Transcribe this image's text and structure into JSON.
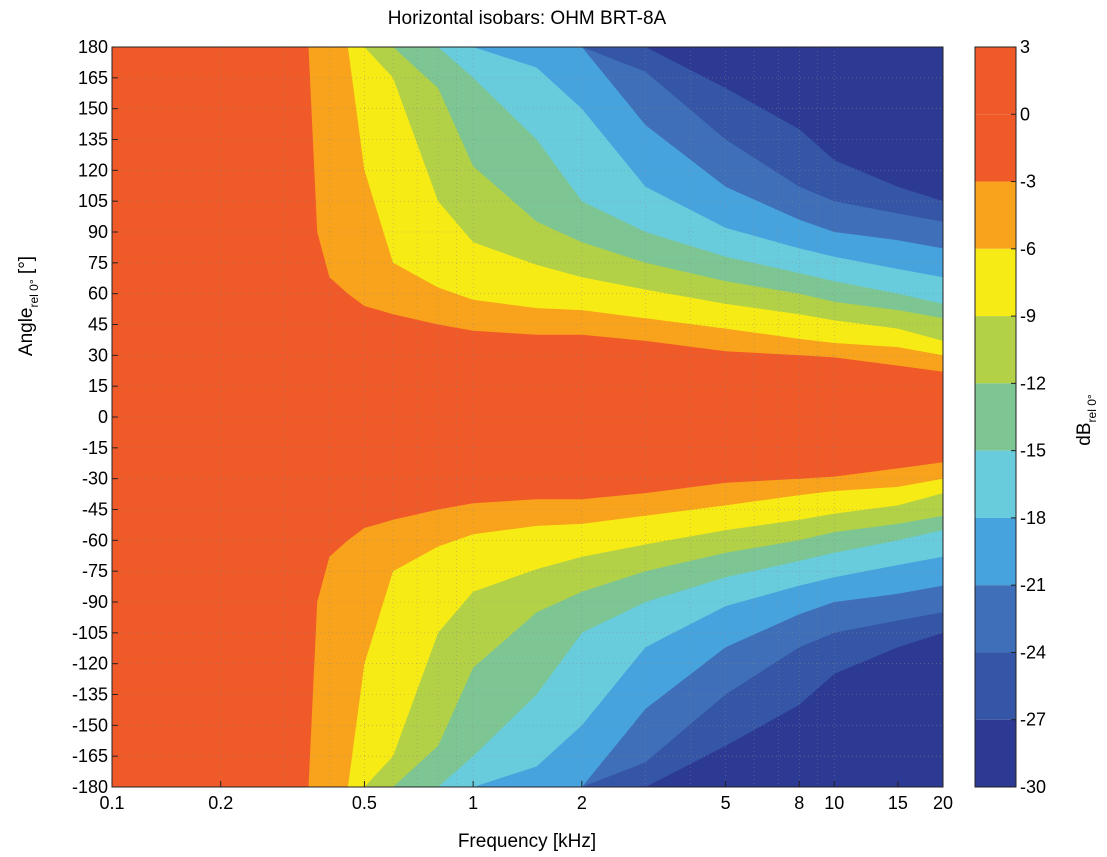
{
  "chart_data": {
    "type": "heatmap",
    "title": "Horizontal isobars: OHM  BRT-8A",
    "xlabel": "Frequency [kHz]",
    "ylabel": {
      "main": "Angle",
      "subscript": "rel 0°",
      "suffix": " [°]"
    },
    "colorbar_label": {
      "main": "dB",
      "subscript": "rel 0°"
    },
    "x_scale": "log",
    "xlim": [
      0.1,
      20
    ],
    "ylim": [
      -180,
      180
    ],
    "grid": true,
    "x_ticks": [
      {
        "value": 0.1,
        "label": "0.1"
      },
      {
        "value": 0.2,
        "label": "0.2"
      },
      {
        "value": 0.5,
        "label": "0.5"
      },
      {
        "value": 1,
        "label": "1"
      },
      {
        "value": 2,
        "label": "2"
      },
      {
        "value": 5,
        "label": "5"
      },
      {
        "value": 8,
        "label": "8"
      },
      {
        "value": 10,
        "label": "10"
      },
      {
        "value": 15,
        "label": "15"
      },
      {
        "value": 20,
        "label": "20"
      }
    ],
    "y_ticks": [
      180,
      165,
      150,
      135,
      120,
      105,
      90,
      75,
      60,
      45,
      30,
      15,
      0,
      -15,
      -30,
      -45,
      -60,
      -75,
      -90,
      -105,
      -120,
      -135,
      -150,
      -165,
      -180
    ],
    "color_levels": [
      {
        "from": 0,
        "to": 3,
        "color": "#F05A28"
      },
      {
        "from": -3,
        "to": 0,
        "color": "#F05A28"
      },
      {
        "from": -6,
        "to": -3,
        "color": "#F9A21B"
      },
      {
        "from": -9,
        "to": -6,
        "color": "#F7EB15"
      },
      {
        "from": -12,
        "to": -9,
        "color": "#B3D147"
      },
      {
        "from": -15,
        "to": -12,
        "color": "#7DC592"
      },
      {
        "from": -18,
        "to": -15,
        "color": "#69CCDD"
      },
      {
        "from": -21,
        "to": -18,
        "color": "#46A3DD"
      },
      {
        "from": -24,
        "to": -21,
        "color": "#3E6FB8"
      },
      {
        "from": -27,
        "to": -24,
        "color": "#3555A6"
      },
      {
        "from": -30,
        "to": -27,
        "color": "#2D3A94"
      }
    ],
    "colorbar_ticks": [
      3,
      0,
      -3,
      -6,
      -9,
      -12,
      -15,
      -18,
      -21,
      -24,
      -27,
      -30
    ],
    "contour_boundaries_deg": {
      "description": "Approximate angle (degrees) at which response falls below each level, per frequency (kHz); mirrored for negative angles",
      "frequency_khz": [
        0.1,
        0.3,
        0.35,
        0.37,
        0.4,
        0.45,
        0.5,
        0.6,
        0.8,
        1,
        1.5,
        2,
        3,
        5,
        8,
        10,
        15,
        20
      ],
      "minus3": [
        180,
        180,
        180,
        90,
        68,
        60,
        54,
        50,
        45,
        42,
        40,
        40,
        37,
        32,
        30,
        29,
        25,
        22
      ],
      "minus6": [
        180,
        180,
        180,
        180,
        180,
        180,
        120,
        75,
        63,
        57,
        53,
        52,
        48,
        43,
        38,
        36,
        34,
        30
      ],
      "minus9": [
        180,
        180,
        180,
        180,
        180,
        180,
        180,
        165,
        105,
        85,
        74,
        68,
        62,
        55,
        50,
        47,
        43,
        37
      ],
      "minus12": [
        180,
        180,
        180,
        180,
        180,
        180,
        180,
        180,
        160,
        122,
        95,
        85,
        75,
        66,
        60,
        56,
        52,
        48
      ],
      "minus15": [
        180,
        180,
        180,
        180,
        180,
        180,
        180,
        180,
        180,
        165,
        135,
        105,
        90,
        78,
        70,
        66,
        60,
        55
      ],
      "minus18": [
        180,
        180,
        180,
        180,
        180,
        180,
        180,
        180,
        180,
        180,
        170,
        150,
        112,
        92,
        82,
        78,
        72,
        68
      ],
      "minus21": [
        180,
        180,
        180,
        180,
        180,
        180,
        180,
        180,
        180,
        180,
        180,
        180,
        142,
        112,
        96,
        90,
        86,
        82
      ],
      "minus24": [
        180,
        180,
        180,
        180,
        180,
        180,
        180,
        180,
        180,
        180,
        180,
        180,
        168,
        135,
        112,
        105,
        99,
        95
      ],
      "minus27": [
        180,
        180,
        180,
        180,
        180,
        180,
        180,
        180,
        180,
        180,
        180,
        180,
        180,
        160,
        140,
        125,
        112,
        105
      ]
    }
  }
}
